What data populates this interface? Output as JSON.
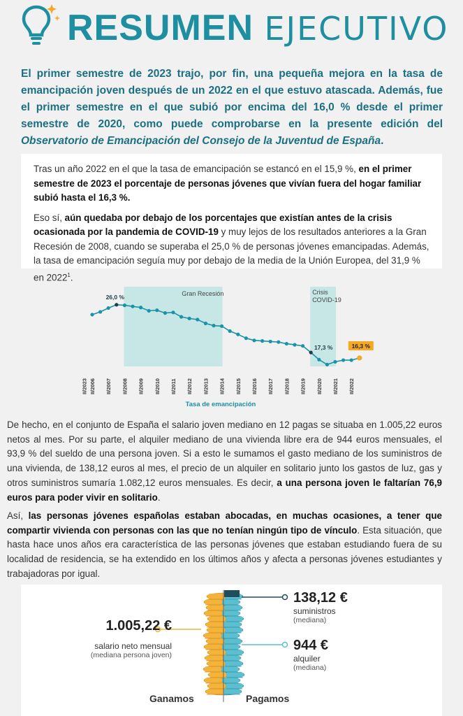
{
  "header": {
    "title_bold": "RESUMEN",
    "title_light": "EJECUTIVO"
  },
  "intro": {
    "text_a": "El primer semestre de 2023 trajo, por fin, una pequeña mejora en la tasa de emancipación joven después de un 2022 en el que estuvo atascada. Además, fue el primer semestre en el que subió por encima del 16,0 % desde el primer semestre de 2020, como puede comprobarse en la presente edición del ",
    "text_em": "Observatorio de Emancipación del Consejo de la Juventud de España",
    "text_end": "."
  },
  "card1": {
    "p1_a": "Tras un año 2022 en el que la tasa de emancipación se estancó en el 15,9 %, ",
    "p1_b": "en el primer semestre de 2023 el porcentaje de personas jóvenes que vivían fuera del hogar familiar subió hasta el 16,3 %",
    "p1_c": ".",
    "p2_a": "Eso sí, ",
    "p2_b": "aún quedaba por debajo de los porcentajes que existían antes de la crisis ocasionada por la pandemia de COVID-19",
    "p2_c": " y muy lejos de los resultados anteriores a la Gran Recesión de 2008, cuando se superaba el 25,0 % de personas jóvenes emancipadas. Además, la tasa de emancipación seguía muy por debajo de la media de la Unión Europea, del 31,9 % en 2022",
    "p2_sup": "1",
    "p2_d": "."
  },
  "chart_data": {
    "type": "line",
    "title": "Tasa de emancipación",
    "categories": [
      "II/2006",
      "II/2007",
      "II/2008",
      "II/2009",
      "II/2010",
      "II/2011",
      "II/2012",
      "II/2013",
      "II/2014",
      "II/2015",
      "II/2016",
      "II/2017",
      "II/2018",
      "II/2019",
      "II/2020",
      "II/2021",
      "II/2022",
      "II/2023"
    ],
    "x": [
      "II/2006",
      "I/2007",
      "II/2007",
      "I/2008",
      "II/2008",
      "I/2009",
      "II/2009",
      "I/2010",
      "II/2010",
      "I/2011",
      "II/2011",
      "I/2012",
      "II/2012",
      "I/2013",
      "II/2013",
      "I/2014",
      "II/2014",
      "I/2015",
      "II/2015",
      "I/2016",
      "II/2016",
      "I/2017",
      "II/2017",
      "I/2018",
      "II/2018",
      "I/2019",
      "II/2019",
      "I/2020",
      "II/2020",
      "I/2021",
      "II/2021",
      "I/2022",
      "II/2022",
      "I/2023"
    ],
    "series": [
      {
        "values": [
          24.2,
          24.7,
          25.4,
          26.0,
          25.9,
          25.7,
          25.5,
          24.9,
          25.0,
          24.5,
          24.6,
          23.8,
          23.5,
          23.3,
          22.6,
          22.2,
          22.1,
          21.2,
          20.6,
          19.9,
          19.5,
          19.4,
          19.3,
          19.2,
          18.9,
          18.7,
          18.5,
          17.3,
          16.0,
          15.1,
          15.6,
          15.9,
          15.9,
          16.3
        ]
      }
    ],
    "shaded_regions": [
      {
        "label": "Gran Recesión",
        "from": "II/2008",
        "to": "II/2014"
      },
      {
        "label": "Crisis COVID-19",
        "from": "I/2020",
        "to": "II/2021"
      }
    ],
    "annotations": [
      {
        "x": "I/2008",
        "text": "26,0 %"
      },
      {
        "x": "I/2020",
        "text": "17,3 %"
      },
      {
        "x": "I/2023",
        "text": "16,3 %",
        "highlight": true
      }
    ],
    "ylim": [
      14,
      27
    ],
    "colors": {
      "line": "#1a93a9",
      "shade": "#c7e6e6",
      "highlight": "#f7a823",
      "dark_point": "#1f3d4a"
    }
  },
  "para3": {
    "text_a": "De hecho, en el conjunto de España el salario joven mediano en 12 pagas se situaba en 1.005,22 euros netos al mes. Por su parte, el alquiler mediano de una vivienda libre era de 944 euros mensuales, el 93,9 % del sueldo de una persona joven. Si a esto le sumamos el gasto mediano de los suministros de una vivienda, de 138,12 euros al mes, el precio de un alquiler en solitario junto los gastos de luz, gas y otros suministros sumaría 1.082,12 euros mensuales. Es decir, ",
    "text_b": "a una persona joven le faltarían 76,9 euros para poder vivir en solitario",
    "text_c": "."
  },
  "para4": {
    "text_a": "Así, ",
    "text_b": "las personas jóvenes españolas estaban abocadas, en muchas ocasiones, a tener que compartir vivienda con personas con las que no tenían ningún tipo de vínculo",
    "text_c": ". Esta situación, que hasta hace unos años era característica de las personas jóvenes que estaban estudiando fuera de su localidad de residencia, se ha extendido en los últimos años y afecta a personas jóvenes estudiantes y trabajadoras por igual."
  },
  "infographic": {
    "salary": {
      "amount": "1.005,22 €",
      "label": "salario neto mensual",
      "sub": "(mediana persona joven)"
    },
    "supplies": {
      "amount": "138,12 €",
      "label": "suministros",
      "sub": "(mediana)"
    },
    "rent": {
      "amount": "944 €",
      "label": "alquiler",
      "sub": "(mediana)"
    },
    "left_caption": "Ganamos",
    "right_caption": "Pagamos",
    "colors": {
      "gold": "#f4b33a",
      "teal": "#5bbfd0",
      "dark": "#1f4d5c"
    }
  }
}
